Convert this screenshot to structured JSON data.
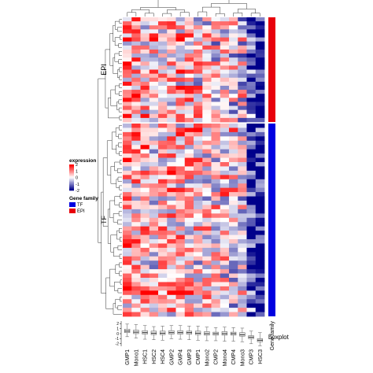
{
  "chart_data": {
    "type": "heatmap",
    "title": "",
    "columns": [
      "GMP1",
      "Mono1",
      "HSC1",
      "HSC2",
      "HSC4",
      "GMP2",
      "GMP4",
      "GMP3",
      "CMP1",
      "Mono2",
      "CMP2",
      "Mono4",
      "CMP4",
      "Mono3",
      "CMP3",
      "HSC3"
    ],
    "row_groups": [
      {
        "name": "EPI",
        "rows": 26,
        "color": "#e8000b"
      },
      {
        "name": "TF",
        "rows": 45,
        "color": "#0000e0"
      }
    ],
    "color_scale": {
      "min": -2,
      "max": 2,
      "low": "#00008b",
      "mid": "#ffffff",
      "high": "#ff0000"
    },
    "colorbar_ticks": [
      "2",
      "1",
      "0",
      "-1",
      "-2"
    ],
    "legend": {
      "expression_title": "expression",
      "family_title": "Gene family",
      "family_items": [
        {
          "label": "TF",
          "color": "#0000e0"
        },
        {
          "label": "EPI",
          "color": "#e8000b"
        }
      ]
    },
    "annotation_label": "Gene family",
    "boxplot": {
      "label": "boxplot",
      "y_ticks": [
        "2",
        "1",
        "0",
        "-1",
        "-2"
      ],
      "ylim": [
        -2.5,
        2.5
      ],
      "stats": [
        {
          "q1": 0.2,
          "median": 0.5,
          "q3": 0.9,
          "low": -0.6,
          "high": 1.9
        },
        {
          "q1": 0.0,
          "median": 0.3,
          "q3": 0.7,
          "low": -0.9,
          "high": 1.8
        },
        {
          "q1": -0.1,
          "median": 0.2,
          "q3": 0.6,
          "low": -1.1,
          "high": 1.6
        },
        {
          "q1": -0.2,
          "median": 0.1,
          "q3": 0.5,
          "low": -1.2,
          "high": 1.4
        },
        {
          "q1": -0.2,
          "median": 0.1,
          "q3": 0.5,
          "low": -1.3,
          "high": 1.5
        },
        {
          "q1": -0.1,
          "median": 0.2,
          "q3": 0.6,
          "low": -1.0,
          "high": 1.6
        },
        {
          "q1": -0.1,
          "median": 0.2,
          "q3": 0.6,
          "low": -1.1,
          "high": 1.6
        },
        {
          "q1": -0.1,
          "median": 0.2,
          "q3": 0.5,
          "low": -1.2,
          "high": 1.5
        },
        {
          "q1": -0.2,
          "median": 0.1,
          "q3": 0.5,
          "low": -1.3,
          "high": 1.5
        },
        {
          "q1": -0.3,
          "median": 0.0,
          "q3": 0.4,
          "low": -1.4,
          "high": 1.3
        },
        {
          "q1": -0.3,
          "median": 0.0,
          "q3": 0.3,
          "low": -1.4,
          "high": 1.2
        },
        {
          "q1": -0.3,
          "median": 0.0,
          "q3": 0.4,
          "low": -1.5,
          "high": 1.3
        },
        {
          "q1": -0.3,
          "median": 0.0,
          "q3": 0.3,
          "low": -1.5,
          "high": 1.2
        },
        {
          "q1": -0.5,
          "median": -0.2,
          "q3": 0.2,
          "low": -1.6,
          "high": 1.1
        },
        {
          "q1": -1.0,
          "median": -0.7,
          "q3": -0.4,
          "low": -2.0,
          "high": 0.5
        },
        {
          "q1": -1.6,
          "median": -1.3,
          "q3": -1.0,
          "low": -2.4,
          "high": 0.2
        }
      ]
    }
  }
}
